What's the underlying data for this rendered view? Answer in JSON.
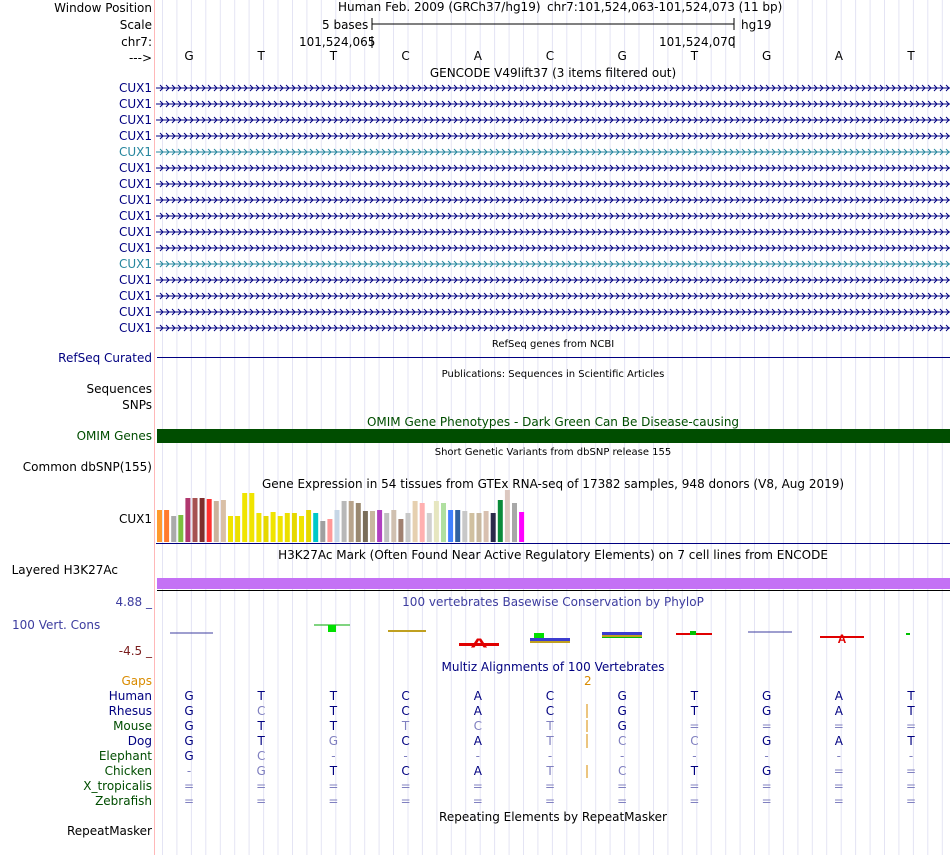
{
  "colors": {
    "navy": "#000080",
    "teal": "#26869e",
    "green_dark": "#004d00",
    "green_text": "#004d00",
    "purple": "#c471f5",
    "gap_orange": "#d98b00",
    "cons_blue": "#3c3c9f",
    "cons_red": "#7a1d1d",
    "dim": "#8080c0"
  },
  "labels": {
    "window_position": "Window Position",
    "scale": "Scale",
    "chrom": "chr7:",
    "arrow": "--->",
    "refseq": "RefSeq Curated",
    "sequences": "Sequences",
    "snps": "SNPs",
    "omim": "OMIM Genes",
    "common_dbsnp": "Common dbSNP(155)",
    "gtex_gene": "CUX1",
    "h3k27ac": "Layered H3K27Ac",
    "cons_max": "4.88 _",
    "cons_name": "100 Vert. Cons",
    "cons_min": "-4.5 _",
    "repeatmasker": "RepeatMasker"
  },
  "header": {
    "assembly": "Human Feb. 2009 (GRCh37/hg19)",
    "position": "chr7:101,524,063-101,524,073 (11 bp)",
    "scale_text": "5 bases",
    "db": "hg19",
    "coord_left": "101,524,065",
    "coord_right": "101,524,070"
  },
  "sequence": [
    "G",
    "T",
    "T",
    "C",
    "A",
    "C",
    "G",
    "T",
    "G",
    "A",
    "T"
  ],
  "tracks": {
    "gencode_title": "GENCODE V49lift37 (3 items filtered out)",
    "refseq_title": "RefSeq genes from NCBI",
    "pubs_title": "Publications: Sequences in Scientific Articles",
    "omim_title": "OMIM Gene Phenotypes - Dark Green Can Be Disease-causing",
    "dbsnp_title": "Short Genetic Variants from dbSNP release 155",
    "gtex_title": "Gene Expression in 54 tissues from GTEx RNA-seq of 17382 samples, 948 donors (V8, Aug 2019)",
    "h3k27ac_title": "H3K27Ac Mark (Often Found Near Active Regulatory Elements) on 7 cell lines from ENCODE",
    "phylop_title": "100 vertebrates Basewise Conservation by PhyloP",
    "multiz_title": "Multiz Alignments of 100 Vertebrates",
    "repeat_title": "Repeating Elements by RepeatMasker"
  },
  "gencode": [
    {
      "name": "CUX1",
      "color": "navy"
    },
    {
      "name": "CUX1",
      "color": "navy"
    },
    {
      "name": "CUX1",
      "color": "navy"
    },
    {
      "name": "CUX1",
      "color": "navy"
    },
    {
      "name": "CUX1",
      "color": "teal"
    },
    {
      "name": "CUX1",
      "color": "navy"
    },
    {
      "name": "CUX1",
      "color": "navy"
    },
    {
      "name": "CUX1",
      "color": "navy"
    },
    {
      "name": "CUX1",
      "color": "navy"
    },
    {
      "name": "CUX1",
      "color": "navy"
    },
    {
      "name": "CUX1",
      "color": "navy"
    },
    {
      "name": "CUX1",
      "color": "teal"
    },
    {
      "name": "CUX1",
      "color": "navy"
    },
    {
      "name": "CUX1",
      "color": "navy"
    },
    {
      "name": "CUX1",
      "color": "navy"
    },
    {
      "name": "CUX1",
      "color": "navy"
    }
  ],
  "gtex_bars": [
    {
      "c": "#ff9a2e",
      "v": 0.62
    },
    {
      "c": "#ff7a2e",
      "v": 0.62
    },
    {
      "c": "#aaaaaa",
      "v": 0.5
    },
    {
      "c": "#7cbf3f",
      "v": 0.52
    },
    {
      "c": "#b0386e",
      "v": 0.85
    },
    {
      "c": "#a65252",
      "v": 0.85
    },
    {
      "c": "#7d2e2e",
      "v": 0.85
    },
    {
      "c": "#ff3030",
      "v": 0.83
    },
    {
      "c": "#cbb29c",
      "v": 0.78
    },
    {
      "c": "#d9bfa6",
      "v": 0.8
    },
    {
      "c": "#f0e400",
      "v": 0.5
    },
    {
      "c": "#ecdf00",
      "v": 0.5
    },
    {
      "c": "#f0e400",
      "v": 0.94
    },
    {
      "c": "#f0e400",
      "v": 0.94
    },
    {
      "c": "#f0e400",
      "v": 0.55
    },
    {
      "c": "#e6d800",
      "v": 0.5
    },
    {
      "c": "#f0e400",
      "v": 0.58
    },
    {
      "c": "#f0e400",
      "v": 0.5
    },
    {
      "c": "#ecdf00",
      "v": 0.55
    },
    {
      "c": "#e6d800",
      "v": 0.55
    },
    {
      "c": "#f0e400",
      "v": 0.5
    },
    {
      "c": "#e6d800",
      "v": 0.62
    },
    {
      "c": "#00c8c8",
      "v": 0.55
    },
    {
      "c": "#a0a0a0",
      "v": 0.4
    },
    {
      "c": "#ff9999",
      "v": 0.45
    },
    {
      "c": "#c6d6e6",
      "v": 0.62
    },
    {
      "c": "#b8b8b8",
      "v": 0.78
    },
    {
      "c": "#b8a48c",
      "v": 0.78
    },
    {
      "c": "#9a8870",
      "v": 0.75
    },
    {
      "c": "#7a6e5a",
      "v": 0.6
    },
    {
      "c": "#c8b8a0",
      "v": 0.6
    },
    {
      "c": "#b040c0",
      "v": 0.62
    },
    {
      "c": "#c0c0c0",
      "v": 0.55
    },
    {
      "c": "#d0c0b0",
      "v": 0.62
    },
    {
      "c": "#a08070",
      "v": 0.45
    },
    {
      "c": "#c8c8c8",
      "v": 0.55
    },
    {
      "c": "#e6d0b0",
      "v": 0.78
    },
    {
      "c": "#ffb0b0",
      "v": 0.75
    },
    {
      "c": "#d0d0d0",
      "v": 0.55
    },
    {
      "c": "#e6e6c0",
      "v": 0.78
    },
    {
      "c": "#b0e0a0",
      "v": 0.75
    },
    {
      "c": "#4080ff",
      "v": 0.62
    },
    {
      "c": "#3060a0",
      "v": 0.62
    },
    {
      "c": "#c8c8c8",
      "v": 0.6
    },
    {
      "c": "#d0c0a0",
      "v": 0.55
    },
    {
      "c": "#c8b8a0",
      "v": 0.55
    },
    {
      "c": "#d8c0b0",
      "v": 0.6
    },
    {
      "c": "#2a2a4a",
      "v": 0.55
    },
    {
      "c": "#0a8a3a",
      "v": 0.8
    },
    {
      "c": "#dcc8c0",
      "v": 1.0
    },
    {
      "c": "#a8a8a8",
      "v": 0.75
    },
    {
      "c": "#ff00ff",
      "v": 0.58
    }
  ],
  "multiz": {
    "gaps_label": "Gaps",
    "gap_count": "2",
    "species": [
      {
        "name": "Human",
        "color": "#000080",
        "bases": [
          "G",
          "T",
          "T",
          "C",
          "A",
          "C",
          "G",
          "T",
          "G",
          "A",
          "T"
        ],
        "dim": [
          0,
          0,
          0,
          0,
          0,
          0,
          0,
          0,
          0,
          0,
          0
        ]
      },
      {
        "name": "Rhesus",
        "color": "#000080",
        "bases": [
          "G",
          "C",
          "T",
          "C",
          "A",
          "C",
          "G",
          "T",
          "G",
          "A",
          "T"
        ],
        "dim": [
          0,
          1,
          0,
          0,
          0,
          0,
          0,
          0,
          0,
          0,
          0
        ]
      },
      {
        "name": "Mouse",
        "color": "#004d00",
        "bases": [
          "G",
          "T",
          "T",
          "T",
          "C",
          "T",
          "G",
          "=",
          "=",
          "=",
          "="
        ],
        "dim": [
          0,
          0,
          0,
          1,
          1,
          1,
          0,
          1,
          1,
          1,
          1
        ]
      },
      {
        "name": "Dog",
        "color": "#000080",
        "bases": [
          "G",
          "T",
          "G",
          "C",
          "A",
          "T",
          "C",
          "C",
          "G",
          "A",
          "T"
        ],
        "dim": [
          0,
          0,
          1,
          0,
          0,
          1,
          1,
          1,
          0,
          0,
          0
        ]
      },
      {
        "name": "Elephant",
        "color": "#004d00",
        "bases": [
          "G",
          "C",
          "-",
          "-",
          "-",
          "-",
          "-",
          "-",
          "-",
          "-",
          "-"
        ],
        "dim": [
          0,
          1,
          1,
          1,
          1,
          1,
          1,
          1,
          1,
          1,
          1
        ]
      },
      {
        "name": "Chicken",
        "color": "#004d00",
        "bases": [
          "-",
          "G",
          "T",
          "C",
          "A",
          "T",
          "C",
          "T",
          "G",
          "=",
          "="
        ],
        "dim": [
          1,
          1,
          0,
          0,
          0,
          1,
          1,
          0,
          0,
          1,
          1
        ]
      },
      {
        "name": "X_tropicalis",
        "color": "#004d00",
        "bases": [
          "=",
          "=",
          "=",
          "=",
          "=",
          "=",
          "=",
          "=",
          "=",
          "=",
          "="
        ],
        "dim": [
          1,
          1,
          1,
          1,
          1,
          1,
          1,
          1,
          1,
          1,
          1
        ]
      },
      {
        "name": "Zebrafish",
        "color": "#004d00",
        "bases": [
          "=",
          "=",
          "=",
          "=",
          "=",
          "=",
          "=",
          "=",
          "=",
          "=",
          "="
        ],
        "dim": [
          1,
          1,
          1,
          1,
          1,
          1,
          1,
          1,
          1,
          1,
          1
        ]
      }
    ]
  }
}
